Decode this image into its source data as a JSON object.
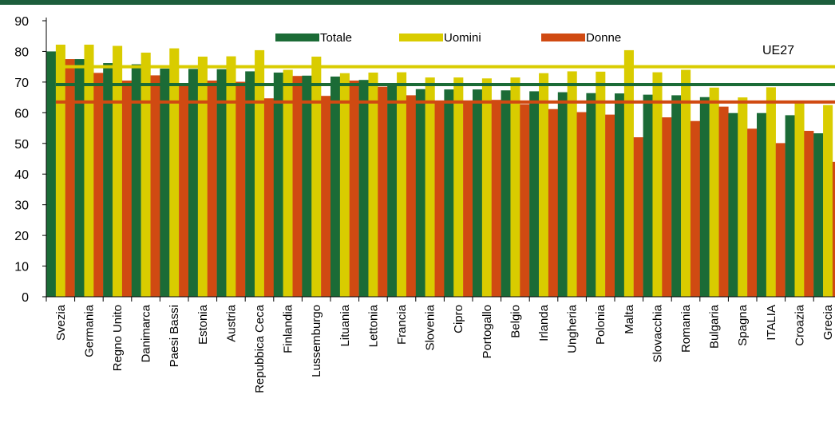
{
  "chart_data": {
    "type": "bar",
    "title": "",
    "xlabel": "",
    "ylabel": "",
    "ylim": [
      0,
      90
    ],
    "yticks": [
      0,
      10,
      20,
      30,
      40,
      50,
      60,
      70,
      80,
      90
    ],
    "grid": false,
    "legend_position": "top",
    "categories": [
      "Svezia",
      "Germania",
      "Regno Unito",
      "Danimarca",
      "Paesi Bassi",
      "Estonia",
      "Austria",
      "Repubbica Ceca",
      "Finlandia",
      "Lussemburgo",
      "Lituania",
      "Lettonia",
      "Francia",
      "Slovenia",
      "Cipro",
      "Portogallo",
      "Belgio",
      "Irlanda",
      "Ungheria",
      "Polonia",
      "Malta",
      "Slovacchia",
      "Romania",
      "Bulgaria",
      "Spagna",
      "ITALIA",
      "Croazia",
      "Grecia"
    ],
    "series": [
      {
        "name": "Totale",
        "color": "#1b6b36",
        "values": [
          80.0,
          77.5,
          76.2,
          75.8,
          74.4,
          74.3,
          74.2,
          73.5,
          73.1,
          72.1,
          71.8,
          70.7,
          69.5,
          67.7,
          67.6,
          67.6,
          67.3,
          67.0,
          66.7,
          66.4,
          66.3,
          65.9,
          65.7,
          65.1,
          59.9,
          59.9,
          59.2,
          53.3
        ]
      },
      {
        "name": "Uomini",
        "color": "#d9cc00",
        "values": [
          82.2,
          82.2,
          81.8,
          79.6,
          81.0,
          78.3,
          78.4,
          80.4,
          74.0,
          78.3,
          72.9,
          73.1,
          73.2,
          71.5,
          71.5,
          71.2,
          71.5,
          72.9,
          73.5,
          73.4,
          80.4,
          73.2,
          74.0,
          68.2,
          65.0,
          68.3,
          64.0,
          62.5
        ]
      },
      {
        "name": "Donne",
        "color": "#d04a12",
        "values": [
          77.5,
          73.0,
          70.5,
          72.2,
          68.7,
          70.5,
          70.1,
          64.7,
          72.0,
          65.5,
          70.5,
          68.5,
          65.7,
          63.8,
          64.0,
          64.2,
          62.8,
          61.2,
          60.2,
          59.4,
          52.0,
          58.5,
          57.3,
          62.0,
          54.8,
          50.1,
          54.1,
          44.0
        ]
      }
    ],
    "reference_lines": [
      {
        "series": "Uomini",
        "value": 75.0
      },
      {
        "series": "Totale",
        "value": 69.2
      },
      {
        "series": "Donne",
        "value": 63.5
      }
    ],
    "annotation": "UE27"
  }
}
